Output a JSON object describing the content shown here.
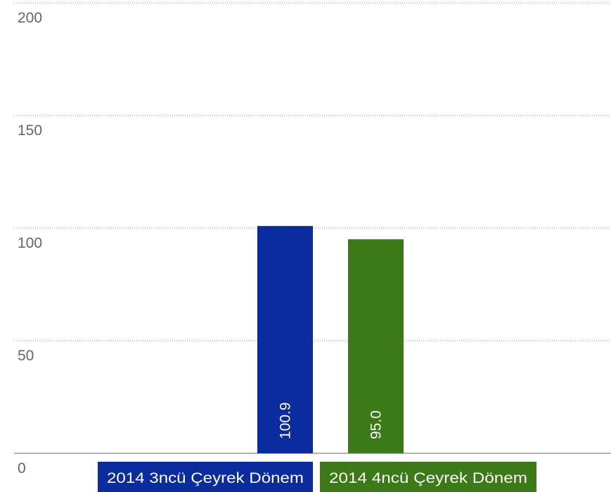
{
  "chart_data": {
    "type": "bar",
    "categories": [
      "2014 3ncü Çeyrek Dönem",
      "2014 4ncü Çeyrek Dönem"
    ],
    "values": [
      100.9,
      95.0
    ],
    "value_labels": [
      "100.9",
      "95.0"
    ],
    "colors": [
      "#0b2c9e",
      "#3b7a16"
    ],
    "ylim": [
      0,
      200
    ],
    "yticks": [
      0,
      50,
      100,
      150,
      200
    ],
    "grid": true,
    "legend": "bottom"
  }
}
